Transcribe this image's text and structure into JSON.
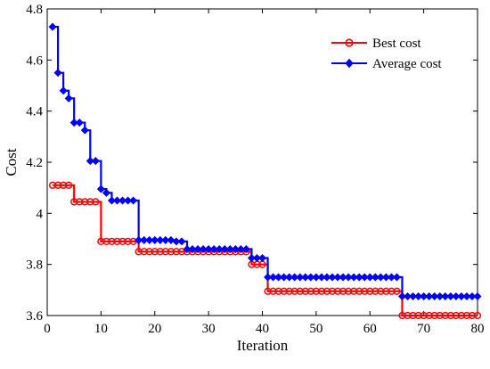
{
  "chart_data": {
    "type": "line",
    "xlabel": "Iteration",
    "ylabel": "Cost",
    "xlim": [
      0,
      80
    ],
    "ylim": [
      3.6,
      4.8
    ],
    "xticks": [
      0,
      10,
      20,
      30,
      40,
      50,
      60,
      70,
      80
    ],
    "yticks": [
      3.6,
      3.8,
      4,
      4.2,
      4.4,
      4.6,
      4.8
    ],
    "ytick_labels": [
      "3.6",
      "3.8",
      "4",
      "4.2",
      "4.4",
      "4.6",
      "4.8"
    ],
    "grid": false,
    "legend_position": "top-right",
    "series": [
      {
        "name": "Best cost",
        "color": "#ff0000",
        "marker": "circle",
        "x": [
          1,
          2,
          3,
          4,
          5,
          6,
          7,
          8,
          9,
          10,
          11,
          12,
          13,
          14,
          15,
          16,
          17,
          18,
          19,
          20,
          21,
          22,
          23,
          24,
          25,
          26,
          27,
          28,
          29,
          30,
          31,
          32,
          33,
          34,
          35,
          36,
          37,
          38,
          39,
          40,
          41,
          42,
          43,
          44,
          45,
          46,
          47,
          48,
          49,
          50,
          51,
          52,
          53,
          54,
          55,
          56,
          57,
          58,
          59,
          60,
          61,
          62,
          63,
          64,
          65,
          66,
          67,
          68,
          69,
          70,
          71,
          72,
          73,
          74,
          75,
          76,
          77,
          78,
          79,
          80
        ],
        "y": [
          4.11,
          4.11,
          4.11,
          4.11,
          4.045,
          4.045,
          4.045,
          4.045,
          4.045,
          3.89,
          3.89,
          3.89,
          3.89,
          3.89,
          3.89,
          3.89,
          3.85,
          3.85,
          3.85,
          3.85,
          3.85,
          3.85,
          3.85,
          3.85,
          3.85,
          3.85,
          3.85,
          3.85,
          3.85,
          3.85,
          3.85,
          3.85,
          3.85,
          3.85,
          3.85,
          3.85,
          3.85,
          3.8,
          3.8,
          3.8,
          3.695,
          3.695,
          3.695,
          3.695,
          3.695,
          3.695,
          3.695,
          3.695,
          3.695,
          3.695,
          3.695,
          3.695,
          3.695,
          3.695,
          3.695,
          3.695,
          3.695,
          3.695,
          3.695,
          3.695,
          3.695,
          3.695,
          3.695,
          3.695,
          3.695,
          3.6,
          3.6,
          3.6,
          3.6,
          3.6,
          3.6,
          3.6,
          3.6,
          3.6,
          3.6,
          3.6,
          3.6,
          3.6,
          3.6,
          3.6
        ]
      },
      {
        "name": "Average cost",
        "color": "#0000ff",
        "marker": "diamond",
        "x": [
          1,
          2,
          3,
          4,
          5,
          6,
          7,
          8,
          9,
          10,
          11,
          12,
          13,
          14,
          15,
          16,
          17,
          18,
          19,
          20,
          21,
          22,
          23,
          24,
          25,
          26,
          27,
          28,
          29,
          30,
          31,
          32,
          33,
          34,
          35,
          36,
          37,
          38,
          39,
          40,
          41,
          42,
          43,
          44,
          45,
          46,
          47,
          48,
          49,
          50,
          51,
          52,
          53,
          54,
          55,
          56,
          57,
          58,
          59,
          60,
          61,
          62,
          63,
          64,
          65,
          66,
          67,
          68,
          69,
          70,
          71,
          72,
          73,
          74,
          75,
          76,
          77,
          78,
          79,
          80
        ],
        "y": [
          4.73,
          4.55,
          4.48,
          4.45,
          4.355,
          4.355,
          4.325,
          4.205,
          4.205,
          4.095,
          4.08,
          4.05,
          4.05,
          4.05,
          4.05,
          4.05,
          3.895,
          3.895,
          3.895,
          3.895,
          3.895,
          3.895,
          3.895,
          3.89,
          3.89,
          3.86,
          3.86,
          3.86,
          3.86,
          3.86,
          3.86,
          3.86,
          3.86,
          3.86,
          3.86,
          3.86,
          3.86,
          3.825,
          3.825,
          3.825,
          3.75,
          3.75,
          3.75,
          3.75,
          3.75,
          3.75,
          3.75,
          3.75,
          3.75,
          3.75,
          3.75,
          3.75,
          3.75,
          3.75,
          3.75,
          3.75,
          3.75,
          3.75,
          3.75,
          3.75,
          3.75,
          3.75,
          3.75,
          3.75,
          3.75,
          3.675,
          3.675,
          3.675,
          3.675,
          3.675,
          3.675,
          3.675,
          3.675,
          3.675,
          3.675,
          3.675,
          3.675,
          3.675,
          3.675,
          3.675
        ]
      }
    ]
  }
}
